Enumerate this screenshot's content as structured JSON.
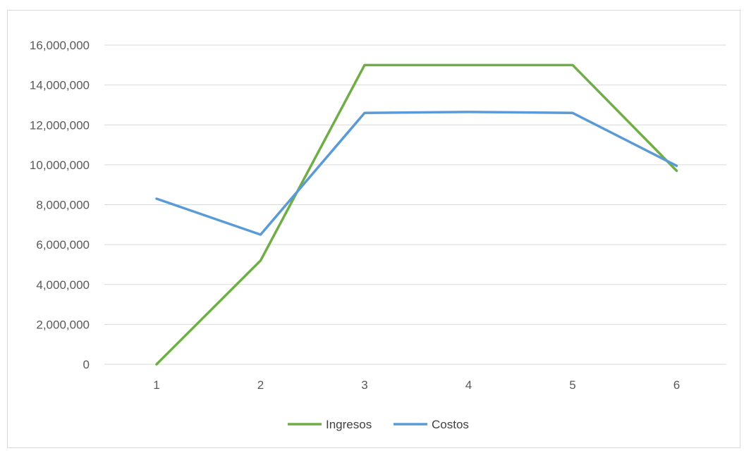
{
  "chart_data": {
    "type": "line",
    "title": "",
    "xlabel": "",
    "ylabel": "",
    "categories": [
      "1",
      "2",
      "3",
      "4",
      "5",
      "6"
    ],
    "ylim": [
      0,
      16000000
    ],
    "y_ticks": [
      "0",
      "2,000,000",
      "4,000,000",
      "6,000,000",
      "8,000,000",
      "10,000,000",
      "12,000,000",
      "14,000,000",
      "16,000,000"
    ],
    "grid": "horizontal",
    "legend_position": "bottom",
    "series": [
      {
        "name": "Ingresos",
        "color": "#70ad47",
        "values": [
          0,
          5200000,
          15000000,
          15000000,
          15000000,
          9700000
        ]
      },
      {
        "name": "Costos",
        "color": "#5b9bd5",
        "values": [
          8300000,
          6500000,
          12600000,
          12650000,
          12600000,
          9950000
        ]
      }
    ]
  }
}
